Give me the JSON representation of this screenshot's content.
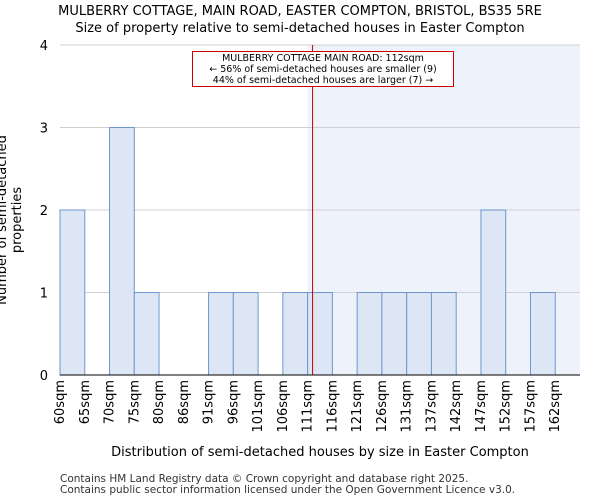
{
  "titles": {
    "line1": "MULBERRY COTTAGE, MAIN ROAD, EASTER COMPTON, BRISTOL, BS35 5RE",
    "line2": "Size of property relative to semi-detached houses in Easter Compton"
  },
  "annotation": {
    "line1": "MULBERRY COTTAGE MAIN ROAD: 112sqm",
    "line2": "← 56% of semi-detached houses are smaller (9)",
    "line3": "44% of semi-detached houses are larger (7) →"
  },
  "footer": {
    "line1": "Contains HM Land Registry data © Crown copyright and database right 2025.",
    "line2": "Contains public sector information licensed under the Open Government Licence v3.0."
  },
  "colors": {
    "bar_fill": "#dce6f5",
    "bar_stroke": "#6f96cf",
    "highlight_bg": "#eef2fb",
    "marker": "#cc0000",
    "grid": "#d0d0d0"
  },
  "chart_data": {
    "type": "bar",
    "title": "MULBERRY COTTAGE, MAIN ROAD, EASTER COMPTON, BRISTOL, BS35 5RE",
    "subtitle": "Size of property relative to semi-detached houses in Easter Compton",
    "xlabel": "Distribution of semi-detached houses by size in Easter Compton",
    "ylabel": "Number of semi-detached properties",
    "categories": [
      "60sqm",
      "65sqm",
      "70sqm",
      "75sqm",
      "80sqm",
      "86sqm",
      "91sqm",
      "96sqm",
      "101sqm",
      "106sqm",
      "111sqm",
      "116sqm",
      "121sqm",
      "126sqm",
      "131sqm",
      "137sqm",
      "142sqm",
      "147sqm",
      "152sqm",
      "157sqm",
      "162sqm"
    ],
    "values": [
      2,
      0,
      3,
      1,
      0,
      0,
      1,
      1,
      0,
      1,
      1,
      0,
      1,
      1,
      1,
      1,
      0,
      2,
      0,
      1,
      0
    ],
    "ylim": [
      0,
      4
    ],
    "yticks": [
      0,
      1,
      2,
      3,
      4
    ],
    "marker_value": "112sqm",
    "highlight_from_category": "111sqm",
    "grid": true
  }
}
